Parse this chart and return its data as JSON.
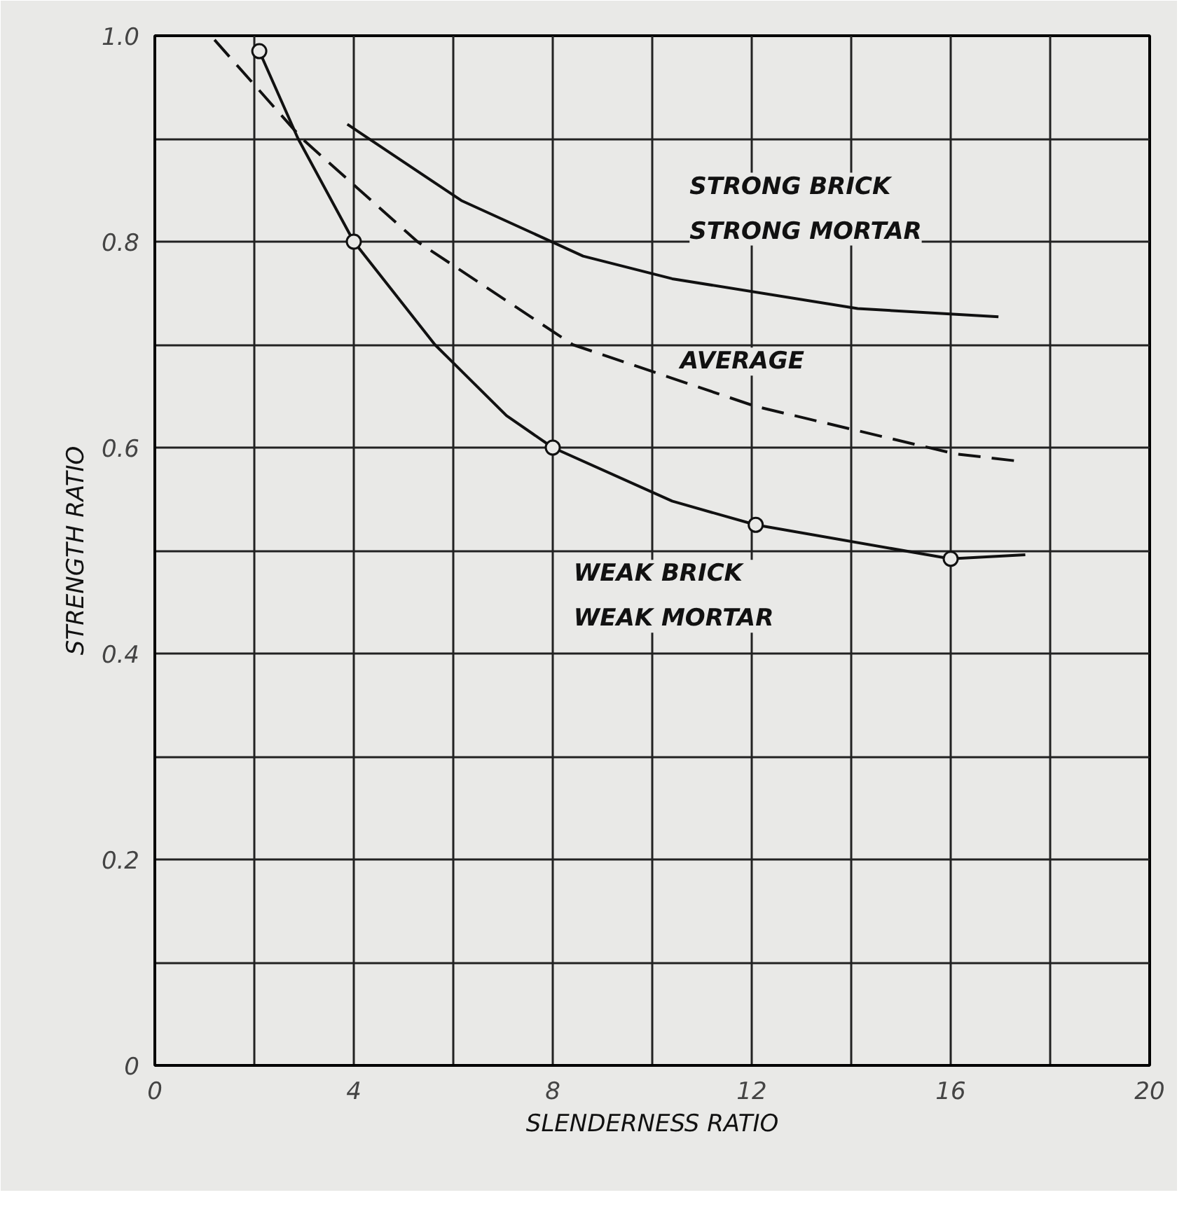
{
  "chart_data": {
    "type": "line",
    "xlabel": "SLENDERNESS RATIO",
    "ylabel": "STRENGTH RATIO",
    "xlim": [
      0,
      20
    ],
    "ylim": [
      0,
      1.0
    ],
    "xticks": [
      0,
      {
        "value": 2,
        "label": null
      },
      4,
      {
        "value": 6,
        "label": null
      },
      8,
      {
        "value": 10,
        "label": null
      },
      12,
      {
        "value": 14,
        "label": null
      },
      16,
      {
        "value": 18,
        "label": null
      },
      20
    ],
    "yticks": [
      0,
      {
        "value": 0.1,
        "label": null
      },
      {
        "value": 0.2,
        "label": "0.2"
      },
      {
        "value": 0.3,
        "label": null
      },
      {
        "value": 0.4,
        "label": "0.4"
      },
      {
        "value": 0.5,
        "label": null
      },
      {
        "value": 0.6,
        "label": "0.6"
      },
      {
        "value": 0.7,
        "label": null
      },
      {
        "value": 0.8,
        "label": "0.8"
      },
      {
        "value": 0.9,
        "label": null
      },
      {
        "value": 1.0,
        "label": "1.0"
      }
    ],
    "grid": true,
    "legend": false,
    "series": [
      {
        "name": "STRONG BRICK\nSTRONG MORTAR",
        "color": "#111111",
        "marker": "none",
        "line_style": "solid",
        "x": [
          3.87,
          6.16,
          8.61,
          10.4,
          14.13,
          16.96
        ],
        "values": [
          0.914,
          0.84,
          0.786,
          0.764,
          0.735,
          0.727
        ]
      },
      {
        "name": "AVERAGE",
        "color": "#111111",
        "marker": "none",
        "line_style": "dashed",
        "x": [
          1.2,
          2.96,
          5.28,
          8.4,
          12.08,
          16.08,
          17.33
        ],
        "values": [
          0.996,
          0.9,
          0.8,
          0.7,
          0.64,
          0.594,
          0.587
        ]
      },
      {
        "name": "WEAK BRICK\nWEAK MORTAR",
        "color": "#111111",
        "marker": "none",
        "line_style": "solid",
        "x": [
          2.1,
          2.88,
          4,
          5.63,
          7.07,
          8,
          10.4,
          12.08,
          16,
          17.5
        ],
        "values": [
          0.985,
          0.9,
          0.8,
          0.7,
          0.631,
          0.6,
          0.548,
          0.525,
          0.492,
          0.496
        ]
      },
      {
        "type": "scatter",
        "color": "#111111",
        "marker": "circle",
        "x": [
          2.1,
          4,
          8,
          12.08,
          16
        ],
        "values": [
          0.985,
          0.8,
          0.6,
          0.525,
          0.492
        ]
      }
    ]
  }
}
